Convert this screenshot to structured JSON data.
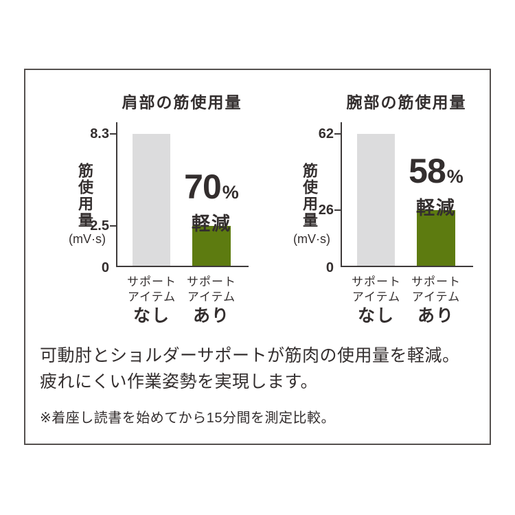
{
  "colors": {
    "panel_border": "#54504e",
    "text": "#332e2e",
    "axis": "#3d3939",
    "bar_without_support": "#dcdcdd",
    "bar_with_support": "#5d7b10"
  },
  "chart_data": [
    {
      "type": "bar",
      "title": "肩部の筋使用量",
      "ylabel": "筋使用量",
      "unit": "(mV·s)",
      "categories": [
        "サポートアイテムなし",
        "サポートアイテムあり"
      ],
      "category_lines": [
        [
          "サポート",
          "アイテム",
          "なし"
        ],
        [
          "サポート",
          "アイテム",
          "あり"
        ]
      ],
      "values": [
        8.3,
        2.5
      ],
      "yticks": [
        0,
        2.5,
        8.3
      ],
      "ylim": [
        0,
        8.3
      ],
      "grid": false,
      "legend_position": "none",
      "bar_colors": [
        "#dcdcdd",
        "#5d7b10"
      ],
      "annotation": {
        "value": "70",
        "percent": "%",
        "label": "軽減"
      }
    },
    {
      "type": "bar",
      "title": "腕部の筋使用量",
      "ylabel": "筋使用量",
      "unit": "(mV·s)",
      "categories": [
        "サポートアイテムなし",
        "サポートアイテムあり"
      ],
      "category_lines": [
        [
          "サポート",
          "アイテム",
          "なし"
        ],
        [
          "サポート",
          "アイテム",
          "あり"
        ]
      ],
      "values": [
        62,
        26
      ],
      "yticks": [
        0,
        26,
        62
      ],
      "ylim": [
        0,
        62
      ],
      "grid": false,
      "legend_position": "none",
      "bar_colors": [
        "#dcdcdd",
        "#5d7b10"
      ],
      "annotation": {
        "value": "58",
        "percent": "%",
        "label": "軽減"
      }
    }
  ],
  "footer": {
    "line1": "可動肘とショルダーサポートが筋肉の使用量を軽減。",
    "line2": "疲れにくい作業姿勢を実現します。",
    "note": "※着座し読書を始めてから15分間を測定比較。"
  }
}
